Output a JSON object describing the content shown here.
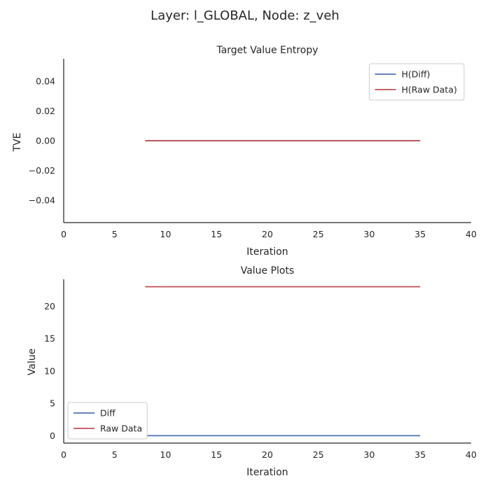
{
  "figure": {
    "title": "Layer: l_GLOBAL, Node: z_veh"
  },
  "colors": {
    "diff": "#4c72b0",
    "raw": "#c44e52"
  },
  "chart_data": [
    {
      "type": "line",
      "title": "Target Value Entropy",
      "xlabel": "Iteration",
      "ylabel": "TVE",
      "xlim": [
        0,
        40
      ],
      "ylim": [
        -0.055,
        0.055
      ],
      "xticks": [
        0,
        5,
        10,
        15,
        20,
        25,
        30,
        35,
        40
      ],
      "xtick_labels": [
        "0",
        "5",
        "10",
        "15",
        "20",
        "25",
        "30",
        "35",
        "40"
      ],
      "yticks": [
        0.04,
        0.02,
        0.0,
        -0.02,
        -0.04
      ],
      "ytick_labels": [
        "0.04",
        "0.02",
        "0.00",
        "−0.02",
        "−0.04"
      ],
      "grid": false,
      "legend_position": "upper right",
      "series": [
        {
          "name": "H(Diff)",
          "color_key": "diff",
          "x": [
            8,
            35
          ],
          "y": [
            0,
            0
          ]
        },
        {
          "name": "H(Raw Data)",
          "color_key": "raw",
          "x": [
            8,
            35
          ],
          "y": [
            0,
            0
          ]
        }
      ]
    },
    {
      "type": "line",
      "title": "Value Plots",
      "xlabel": "Iteration",
      "ylabel": "Value",
      "xlim": [
        0,
        40
      ],
      "ylim": [
        -1.15,
        24.15
      ],
      "xticks": [
        0,
        5,
        10,
        15,
        20,
        25,
        30,
        35,
        40
      ],
      "xtick_labels": [
        "0",
        "5",
        "10",
        "15",
        "20",
        "25",
        "30",
        "35",
        "40"
      ],
      "yticks": [
        0,
        5,
        10,
        15,
        20
      ],
      "ytick_labels": [
        "0",
        "5",
        "10",
        "15",
        "20"
      ],
      "grid": false,
      "legend_position": "lower left",
      "series": [
        {
          "name": "Diff",
          "color_key": "diff",
          "x": [
            8,
            35
          ],
          "y": [
            0,
            0
          ]
        },
        {
          "name": "Raw Data",
          "color_key": "raw",
          "x": [
            8,
            35
          ],
          "y": [
            23,
            23
          ]
        }
      ]
    }
  ]
}
